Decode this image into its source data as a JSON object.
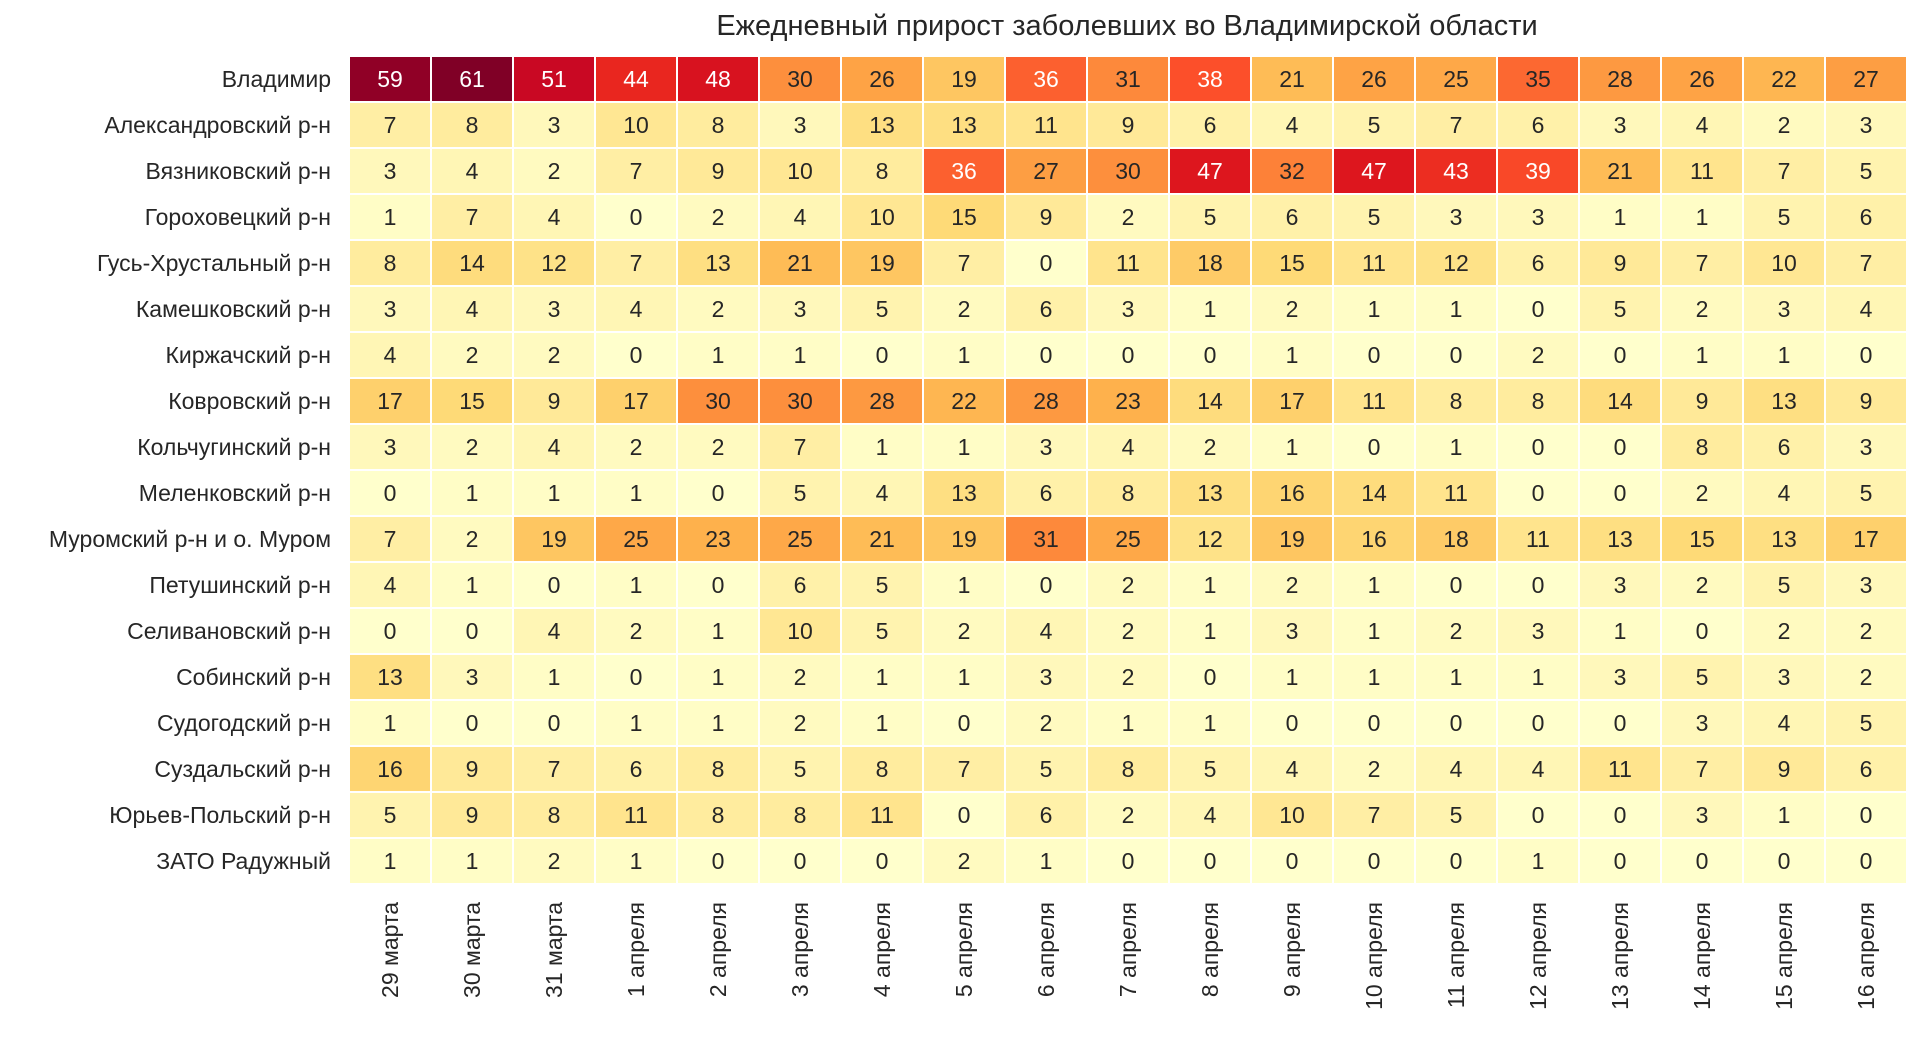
{
  "chart_data": {
    "type": "heatmap",
    "title": "Ежедневный прирост заболевших во Владимирской области",
    "xlabel": "",
    "ylabel": "",
    "colormap": "YlOrRd",
    "vmin": 0,
    "vmax": 61,
    "x": [
      "29 марта",
      "30 марта",
      "31 марта",
      "1 апреля",
      "2 апреля",
      "3 апреля",
      "4 апреля",
      "5 апреля",
      "6 апреля",
      "7 апреля",
      "8 апреля",
      "9 апреля",
      "10 апреля",
      "11 апреля",
      "12 апреля",
      "13 апреля",
      "14 апреля",
      "15 апреля",
      "16 апреля"
    ],
    "y": [
      "Владимир",
      "Александровский р-н",
      "Вязниковский р-н",
      "Гороховецкий р-н",
      "Гусь-Хрустальный р-н",
      "Камешковский р-н",
      "Киржачский р-н",
      "Ковровский р-н",
      "Кольчугинский р-н",
      "Меленковский р-н",
      "Муромский р-н и о. Муром",
      "Петушинский р-н",
      "Селивановский р-н",
      "Собинский р-н",
      "Судогодский р-н",
      "Суздальский р-н",
      "Юрьев-Польский р-н",
      "ЗАТО Радужный"
    ],
    "values": [
      [
        59,
        61,
        51,
        44,
        48,
        30,
        26,
        19,
        36,
        31,
        38,
        21,
        26,
        25,
        35,
        28,
        26,
        22,
        27
      ],
      [
        7,
        8,
        3,
        10,
        8,
        3,
        13,
        13,
        11,
        9,
        6,
        4,
        5,
        7,
        6,
        3,
        4,
        2,
        3
      ],
      [
        3,
        4,
        2,
        7,
        9,
        10,
        8,
        36,
        27,
        30,
        47,
        32,
        47,
        43,
        39,
        21,
        11,
        7,
        5
      ],
      [
        1,
        7,
        4,
        0,
        2,
        4,
        10,
        15,
        9,
        2,
        5,
        6,
        5,
        3,
        3,
        1,
        1,
        5,
        6
      ],
      [
        8,
        14,
        12,
        7,
        13,
        21,
        19,
        7,
        0,
        11,
        18,
        15,
        11,
        12,
        6,
        9,
        7,
        10,
        7
      ],
      [
        3,
        4,
        3,
        4,
        2,
        3,
        5,
        2,
        6,
        3,
        1,
        2,
        1,
        1,
        0,
        5,
        2,
        3,
        4
      ],
      [
        4,
        2,
        2,
        0,
        1,
        1,
        0,
        1,
        0,
        0,
        0,
        1,
        0,
        0,
        2,
        0,
        1,
        1,
        0
      ],
      [
        17,
        15,
        9,
        17,
        30,
        30,
        28,
        22,
        28,
        23,
        14,
        17,
        11,
        8,
        8,
        14,
        9,
        13,
        9
      ],
      [
        3,
        2,
        4,
        2,
        2,
        7,
        1,
        1,
        3,
        4,
        2,
        1,
        0,
        1,
        0,
        0,
        8,
        6,
        3
      ],
      [
        0,
        1,
        1,
        1,
        0,
        5,
        4,
        13,
        6,
        8,
        13,
        16,
        14,
        11,
        0,
        0,
        2,
        4,
        5
      ],
      [
        7,
        2,
        19,
        25,
        23,
        25,
        21,
        19,
        31,
        25,
        12,
        19,
        16,
        18,
        11,
        13,
        15,
        13,
        17
      ],
      [
        4,
        1,
        0,
        1,
        0,
        6,
        5,
        1,
        0,
        2,
        1,
        2,
        1,
        0,
        0,
        3,
        2,
        5,
        3
      ],
      [
        0,
        0,
        4,
        2,
        1,
        10,
        5,
        2,
        4,
        2,
        1,
        3,
        1,
        2,
        3,
        1,
        0,
        2,
        2
      ],
      [
        13,
        3,
        1,
        0,
        1,
        2,
        1,
        1,
        3,
        2,
        0,
        1,
        1,
        1,
        1,
        3,
        5,
        3,
        2
      ],
      [
        1,
        0,
        0,
        1,
        1,
        2,
        1,
        0,
        2,
        1,
        1,
        0,
        0,
        0,
        0,
        0,
        3,
        4,
        5
      ],
      [
        16,
        9,
        7,
        6,
        8,
        5,
        8,
        7,
        5,
        8,
        5,
        4,
        2,
        4,
        4,
        11,
        7,
        9,
        6
      ],
      [
        5,
        9,
        8,
        11,
        8,
        8,
        11,
        0,
        6,
        2,
        4,
        10,
        7,
        5,
        0,
        0,
        3,
        1,
        0
      ],
      [
        1,
        1,
        2,
        1,
        0,
        0,
        0,
        2,
        1,
        0,
        0,
        0,
        0,
        0,
        1,
        0,
        0,
        0,
        0
      ]
    ]
  }
}
